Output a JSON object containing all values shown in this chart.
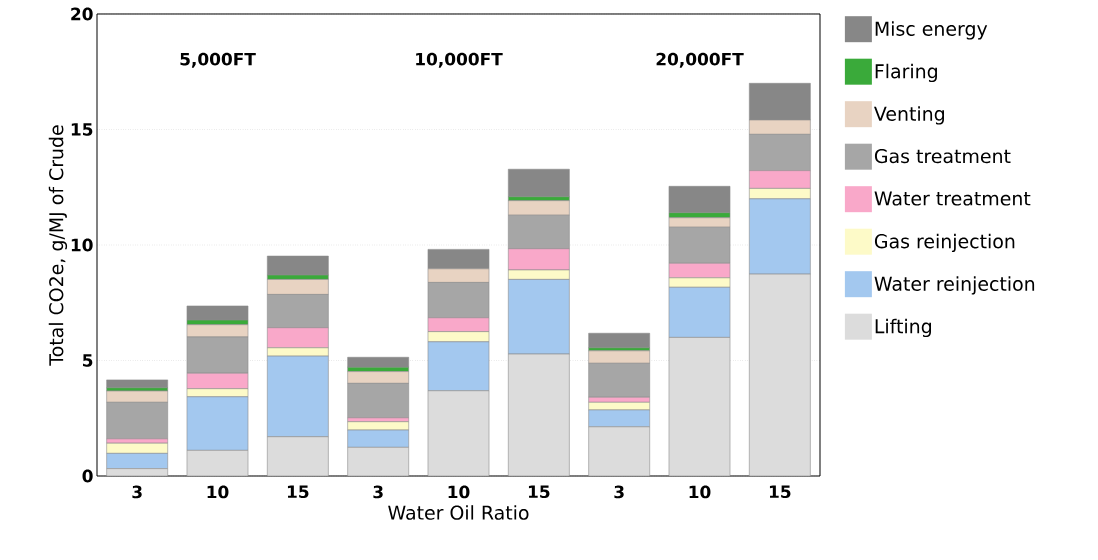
{
  "chart_data": {
    "type": "bar",
    "stacked": true,
    "xlabel": "Water Oil Ratio",
    "ylabel": "Total CO2e, g/MJ of Crude",
    "categories": [
      "3",
      "10",
      "15",
      "3",
      "10",
      "15",
      "3",
      "10",
      "15"
    ],
    "annotations": [
      "5,000FT",
      "10,000FT",
      "20,000FT"
    ],
    "ylim": [
      0,
      20
    ],
    "yticks": [
      0,
      5,
      10,
      15,
      20
    ],
    "grid": "y",
    "legend": "right",
    "series": [
      {
        "name": "Lifting",
        "color": "#dcdcdc",
        "values": [
          0.32,
          1.11,
          1.7,
          1.24,
          3.69,
          5.28,
          2.13,
          6.0,
          8.74
        ]
      },
      {
        "name": "Water reinjection",
        "color": "#a3c8ef",
        "values": [
          0.66,
          2.32,
          3.49,
          0.75,
          2.12,
          3.23,
          0.73,
          2.17,
          3.26
        ]
      },
      {
        "name": "Gas reinjection",
        "color": "#fdfac8",
        "values": [
          0.44,
          0.35,
          0.36,
          0.36,
          0.44,
          0.41,
          0.33,
          0.41,
          0.45
        ]
      },
      {
        "name": "Water treatment",
        "color": "#f9a8c9",
        "values": [
          0.19,
          0.67,
          0.87,
          0.17,
          0.6,
          0.92,
          0.22,
          0.63,
          0.77
        ]
      },
      {
        "name": "Gas treatment",
        "color": "#a6a6a6",
        "values": [
          1.58,
          1.57,
          1.44,
          1.49,
          1.53,
          1.45,
          1.47,
          1.56,
          1.57
        ]
      },
      {
        "name": "Venting",
        "color": "#e8d3c2",
        "values": [
          0.49,
          0.53,
          0.65,
          0.51,
          0.59,
          0.63,
          0.54,
          0.41,
          0.62
        ]
      },
      {
        "name": "Flaring",
        "color": "#3aaa3a",
        "values": [
          0.14,
          0.2,
          0.19,
          0.19,
          0,
          0.17,
          0.13,
          0.22,
          0
        ]
      },
      {
        "name": "Misc energy",
        "color": "#878787",
        "values": [
          0.34,
          0.61,
          0.82,
          0.43,
          0.84,
          1.19,
          0.63,
          1.14,
          1.59
        ]
      }
    ]
  }
}
